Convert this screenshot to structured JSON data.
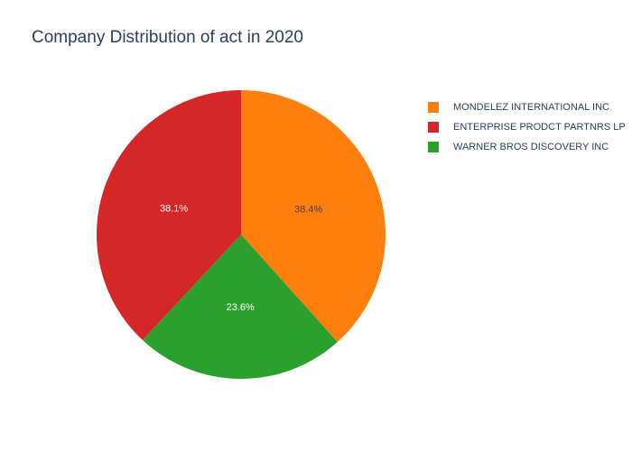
{
  "chart_data": {
    "type": "pie",
    "title": "Company Distribution of act in 2020",
    "slices": [
      {
        "label": "MONDELEZ INTERNATIONAL INC",
        "value": 38.4,
        "percent_label": "38.4%",
        "color": "#ff7f0e",
        "label_color": "#444444"
      },
      {
        "label": "WARNER BROS DISCOVERY INC",
        "value": 23.6,
        "percent_label": "23.6%",
        "color": "#2ca02c",
        "label_color": "#ffffff"
      },
      {
        "label": "ENTERPRISE PRODCT PARTNRS LP",
        "value": 38.1,
        "percent_label": "38.1%",
        "color": "#d62728",
        "label_color": "#ffffff"
      }
    ],
    "legend": {
      "placement": "top-right",
      "entries": [
        {
          "label": "MONDELEZ INTERNATIONAL INC",
          "color": "#ff7f0e"
        },
        {
          "label": "ENTERPRISE PRODCT PARTNRS LP",
          "color": "#d62728"
        },
        {
          "label": "WARNER BROS DISCOVERY INC",
          "color": "#2ca02c"
        }
      ]
    }
  }
}
